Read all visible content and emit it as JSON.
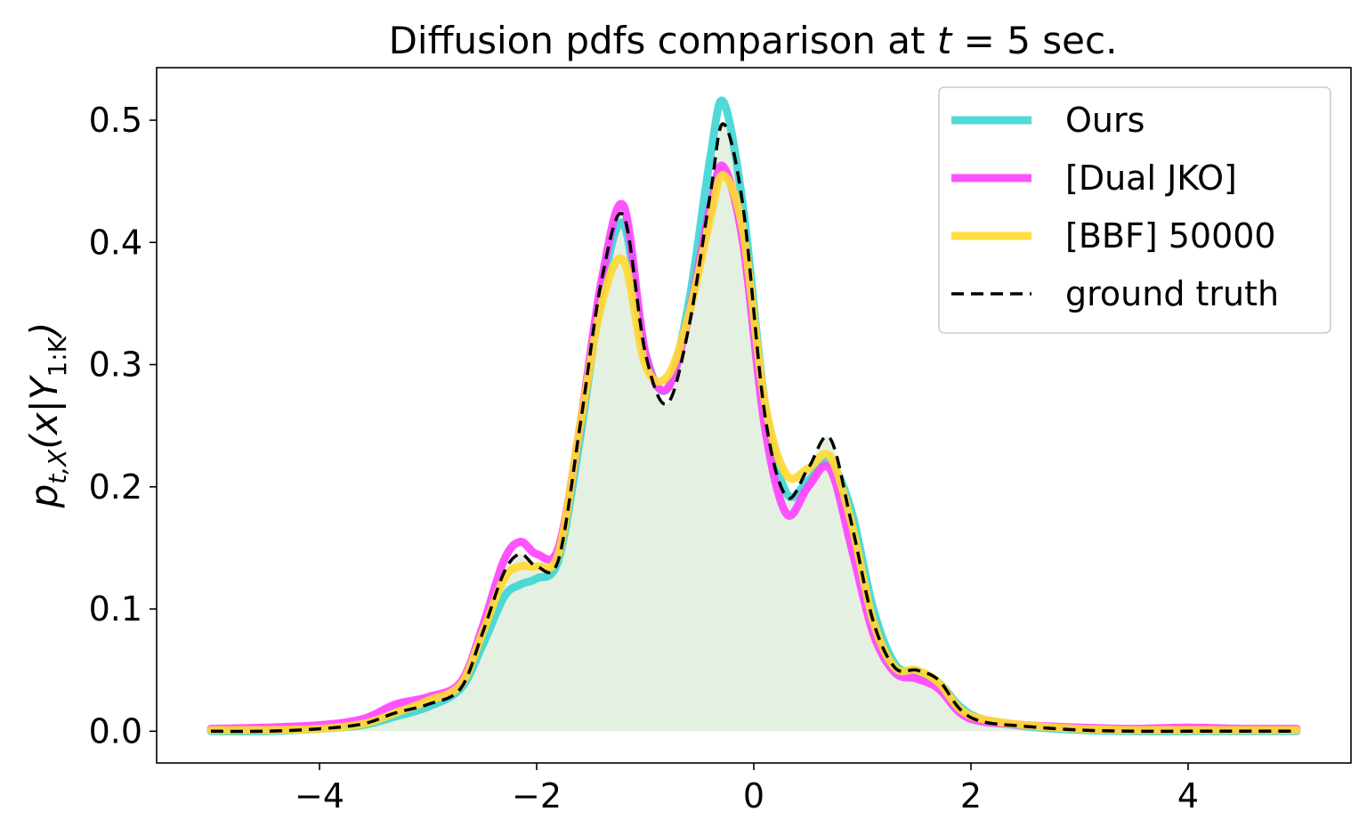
{
  "chart_data": {
    "type": "line",
    "title_text": "Diffusion pdfs comparison at ",
    "title_var": "t",
    "title_rest": " = 5 sec.",
    "ylabel": {
      "base": "p",
      "sub": "t,X",
      "mid": "(x|Y",
      "sub2": "1:K",
      "end": ")"
    },
    "xlabel": "",
    "xlim": [
      -5.5,
      5.5
    ],
    "ylim": [
      -0.026,
      0.543
    ],
    "xticks": [
      -4,
      -2,
      0,
      2,
      4
    ],
    "xtick_labels": [
      "−4",
      "−2",
      "0",
      "2",
      "4"
    ],
    "yticks": [
      0.0,
      0.1,
      0.2,
      0.3,
      0.4,
      0.5
    ],
    "ytick_labels": [
      "0.0",
      "0.1",
      "0.2",
      "0.3",
      "0.4",
      "0.5"
    ],
    "grid": false,
    "legend_position": "top-right",
    "fill_color": "#e4f0e1",
    "x": [
      -5.0,
      -4.5,
      -4.0,
      -3.6,
      -3.3,
      -3.0,
      -2.7,
      -2.5,
      -2.3,
      -2.15,
      -2.0,
      -1.8,
      -1.6,
      -1.4,
      -1.2,
      -1.0,
      -0.8,
      -0.6,
      -0.4,
      -0.28,
      -0.1,
      0.1,
      0.3,
      0.5,
      0.7,
      0.9,
      1.1,
      1.3,
      1.5,
      1.7,
      1.9,
      2.1,
      2.5,
      3.0,
      3.5,
      4.0,
      4.5,
      5.0
    ],
    "series": [
      {
        "name": "Ours",
        "color": "#40d6d6",
        "width": 9,
        "dash": "",
        "values": [
          0.0,
          0.0,
          0.002,
          0.005,
          0.012,
          0.02,
          0.035,
          0.07,
          0.11,
          0.12,
          0.125,
          0.14,
          0.24,
          0.36,
          0.415,
          0.31,
          0.28,
          0.35,
          0.47,
          0.515,
          0.43,
          0.27,
          0.195,
          0.205,
          0.22,
          0.18,
          0.1,
          0.055,
          0.048,
          0.04,
          0.02,
          0.01,
          0.004,
          0.001,
          0.0,
          0.0,
          0.0,
          0.0
        ]
      },
      {
        "name": "[Dual JKO]",
        "color": "#ff44ff",
        "width": 9,
        "dash": "",
        "values": [
          0.002,
          0.003,
          0.005,
          0.01,
          0.022,
          0.028,
          0.04,
          0.085,
          0.14,
          0.155,
          0.145,
          0.15,
          0.25,
          0.37,
          0.43,
          0.31,
          0.28,
          0.34,
          0.43,
          0.462,
          0.4,
          0.25,
          0.178,
          0.2,
          0.215,
          0.15,
          0.08,
          0.048,
          0.043,
          0.035,
          0.015,
          0.008,
          0.005,
          0.003,
          0.002,
          0.003,
          0.002,
          0.002
        ]
      },
      {
        "name": "[BBF] 50000",
        "color": "#ffd933",
        "width": 9,
        "dash": "",
        "values": [
          0.001,
          0.001,
          0.002,
          0.006,
          0.015,
          0.025,
          0.038,
          0.08,
          0.125,
          0.135,
          0.135,
          0.145,
          0.25,
          0.35,
          0.385,
          0.3,
          0.29,
          0.34,
          0.42,
          0.455,
          0.41,
          0.27,
          0.21,
          0.215,
          0.225,
          0.17,
          0.09,
          0.052,
          0.05,
          0.04,
          0.018,
          0.01,
          0.005,
          0.002,
          0.001,
          0.001,
          0.001,
          0.001
        ]
      },
      {
        "name": "ground truth",
        "color": "#000000",
        "width": 3.5,
        "dash": "14,8",
        "values": [
          0.0,
          0.0,
          0.002,
          0.006,
          0.015,
          0.022,
          0.035,
          0.08,
          0.13,
          0.145,
          0.135,
          0.14,
          0.25,
          0.37,
          0.422,
          0.31,
          0.268,
          0.33,
          0.44,
          0.497,
          0.43,
          0.26,
          0.192,
          0.215,
          0.24,
          0.17,
          0.09,
          0.052,
          0.05,
          0.042,
          0.018,
          0.008,
          0.004,
          0.001,
          0.0,
          0.0,
          0.0,
          0.0
        ]
      }
    ]
  }
}
